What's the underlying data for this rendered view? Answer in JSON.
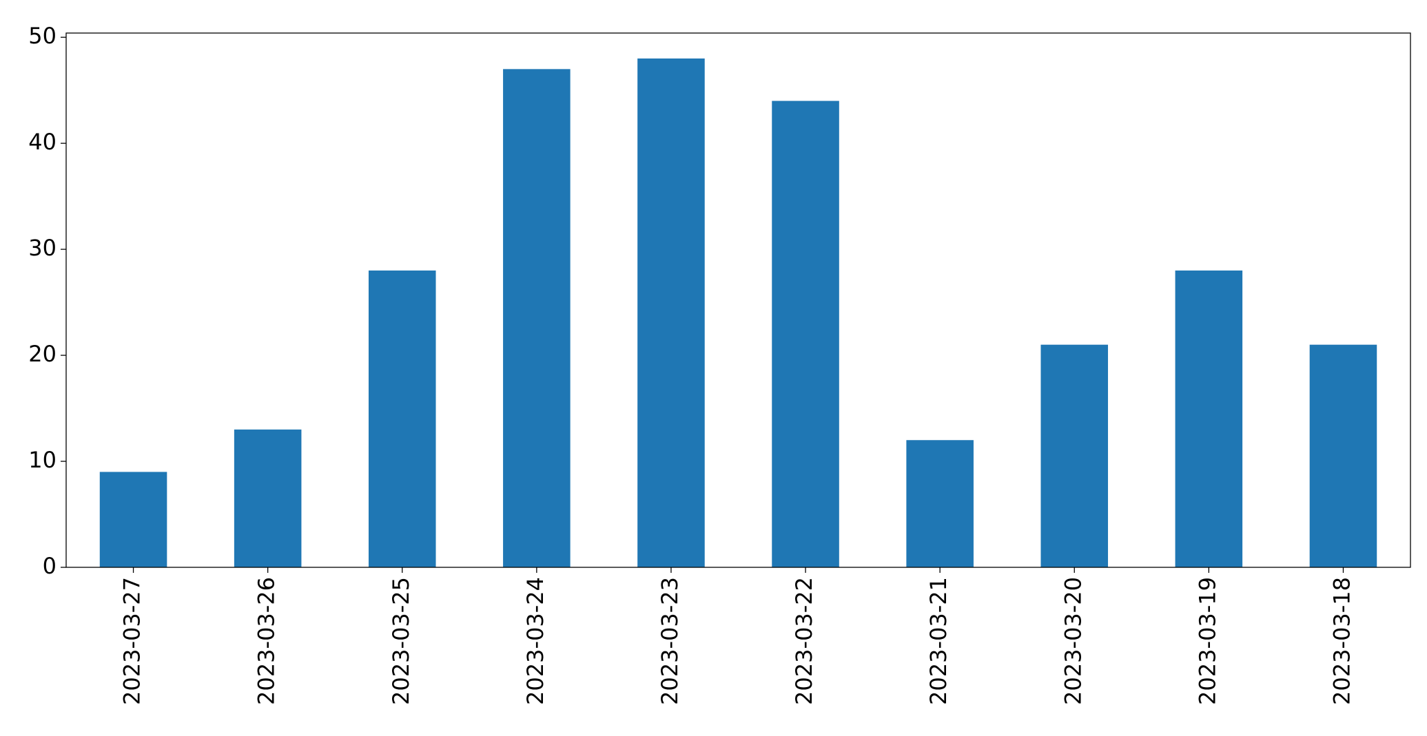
{
  "chart_data": {
    "type": "bar",
    "categories": [
      "2023-03-27",
      "2023-03-26",
      "2023-03-25",
      "2023-03-24",
      "2023-03-23",
      "2023-03-22",
      "2023-03-21",
      "2023-03-20",
      "2023-03-19",
      "2023-03-18"
    ],
    "values": [
      9,
      13,
      28,
      47,
      48,
      44,
      12,
      21,
      28,
      21
    ],
    "color": "#1f77b4",
    "ylim": [
      0,
      50.4
    ],
    "yticks": [
      0,
      10,
      20,
      30,
      40,
      50
    ],
    "grid": false
  }
}
